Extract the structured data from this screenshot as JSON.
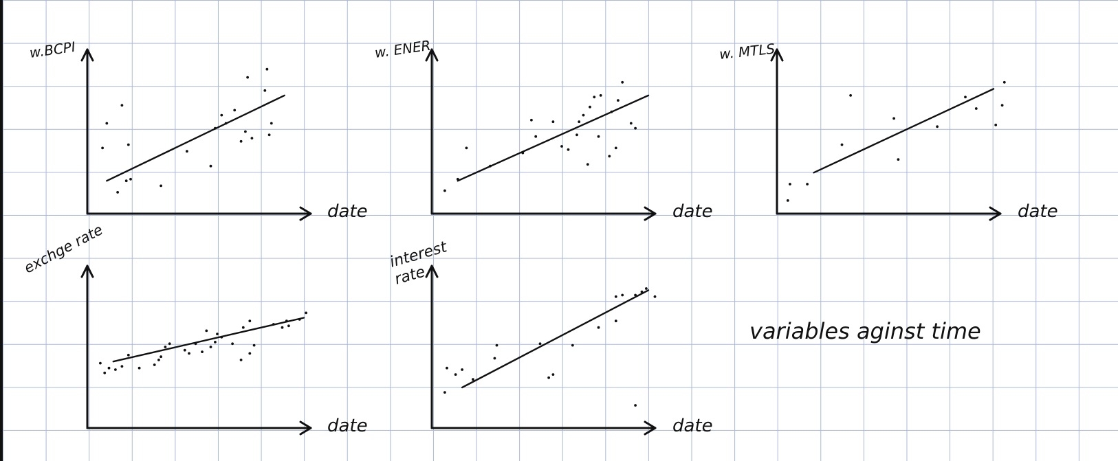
{
  "note": {
    "caption": "variables aginst time"
  },
  "chart_data": [
    {
      "type": "scatter",
      "ylabel": "w.BCPI",
      "xlabel": "date",
      "trend": [
        [
          0.09,
          0.2
        ],
        [
          0.91,
          0.72
        ]
      ],
      "points": [
        [
          0.07,
          0.4
        ],
        [
          0.09,
          0.55
        ],
        [
          0.16,
          0.66
        ],
        [
          0.19,
          0.42
        ],
        [
          0.14,
          0.13
        ],
        [
          0.18,
          0.2
        ],
        [
          0.2,
          0.21
        ],
        [
          0.34,
          0.17
        ],
        [
          0.46,
          0.38
        ],
        [
          0.57,
          0.29
        ],
        [
          0.59,
          0.52
        ],
        [
          0.62,
          0.6
        ],
        [
          0.64,
          0.55
        ],
        [
          0.68,
          0.63
        ],
        [
          0.71,
          0.44
        ],
        [
          0.73,
          0.5
        ],
        [
          0.76,
          0.46
        ],
        [
          0.84,
          0.48
        ],
        [
          0.85,
          0.55
        ],
        [
          0.82,
          0.75
        ],
        [
          0.74,
          0.83
        ],
        [
          0.83,
          0.88
        ]
      ]
    },
    {
      "type": "scatter",
      "ylabel": "w. ENER",
      "xlabel": "date",
      "trend": [
        [
          0.12,
          0.2
        ],
        [
          1.0,
          0.72
        ]
      ],
      "points": [
        [
          0.06,
          0.14
        ],
        [
          0.12,
          0.21
        ],
        [
          0.16,
          0.4
        ],
        [
          0.27,
          0.29
        ],
        [
          0.42,
          0.37
        ],
        [
          0.46,
          0.57
        ],
        [
          0.48,
          0.47
        ],
        [
          0.56,
          0.56
        ],
        [
          0.6,
          0.41
        ],
        [
          0.63,
          0.39
        ],
        [
          0.67,
          0.48
        ],
        [
          0.68,
          0.56
        ],
        [
          0.7,
          0.6
        ],
        [
          0.73,
          0.65
        ],
        [
          0.75,
          0.71
        ],
        [
          0.78,
          0.72
        ],
        [
          0.72,
          0.3
        ],
        [
          0.77,
          0.47
        ],
        [
          0.82,
          0.35
        ],
        [
          0.83,
          0.62
        ],
        [
          0.86,
          0.69
        ],
        [
          0.88,
          0.8
        ],
        [
          0.92,
          0.55
        ],
        [
          0.94,
          0.52
        ],
        [
          0.85,
          0.4
        ]
      ]
    },
    {
      "type": "scatter",
      "ylabel": "w. MTLS",
      "xlabel": "date",
      "trend": [
        [
          0.17,
          0.25
        ],
        [
          1.0,
          0.76
        ]
      ],
      "points": [
        [
          0.05,
          0.08
        ],
        [
          0.06,
          0.18
        ],
        [
          0.14,
          0.18
        ],
        [
          0.3,
          0.42
        ],
        [
          0.34,
          0.72
        ],
        [
          0.54,
          0.58
        ],
        [
          0.56,
          0.33
        ],
        [
          0.74,
          0.53
        ],
        [
          0.87,
          0.71
        ],
        [
          0.92,
          0.64
        ],
        [
          1.01,
          0.54
        ],
        [
          1.04,
          0.66
        ],
        [
          1.05,
          0.8
        ]
      ]
    },
    {
      "type": "scatter",
      "ylabel": "exchge rate",
      "xlabel": "date",
      "trend": [
        [
          0.12,
          0.41
        ],
        [
          1.0,
          0.68
        ]
      ],
      "points": [
        [
          0.06,
          0.4
        ],
        [
          0.08,
          0.34
        ],
        [
          0.1,
          0.37
        ],
        [
          0.13,
          0.36
        ],
        [
          0.16,
          0.38
        ],
        [
          0.19,
          0.45
        ],
        [
          0.24,
          0.37
        ],
        [
          0.31,
          0.39
        ],
        [
          0.33,
          0.42
        ],
        [
          0.34,
          0.44
        ],
        [
          0.36,
          0.5
        ],
        [
          0.38,
          0.52
        ],
        [
          0.45,
          0.48
        ],
        [
          0.47,
          0.46
        ],
        [
          0.5,
          0.52
        ],
        [
          0.53,
          0.47
        ],
        [
          0.57,
          0.5
        ],
        [
          0.59,
          0.53
        ],
        [
          0.55,
          0.6
        ],
        [
          0.6,
          0.58
        ],
        [
          0.62,
          0.56
        ],
        [
          0.67,
          0.52
        ],
        [
          0.71,
          0.42
        ],
        [
          0.75,
          0.46
        ],
        [
          0.77,
          0.51
        ],
        [
          0.72,
          0.62
        ],
        [
          0.75,
          0.66
        ],
        [
          0.86,
          0.64
        ],
        [
          0.9,
          0.62
        ],
        [
          0.93,
          0.63
        ],
        [
          0.98,
          0.67
        ],
        [
          0.92,
          0.66
        ],
        [
          1.01,
          0.71
        ]
      ]
    },
    {
      "type": "scatter",
      "ylabel": "interest rate",
      "xlabel": "date",
      "trend": [
        [
          0.14,
          0.25
        ],
        [
          1.0,
          0.85
        ]
      ],
      "points": [
        [
          0.06,
          0.22
        ],
        [
          0.07,
          0.37
        ],
        [
          0.11,
          0.33
        ],
        [
          0.14,
          0.36
        ],
        [
          0.19,
          0.3
        ],
        [
          0.29,
          0.43
        ],
        [
          0.3,
          0.51
        ],
        [
          0.5,
          0.52
        ],
        [
          0.54,
          0.31
        ],
        [
          0.56,
          0.33
        ],
        [
          0.65,
          0.51
        ],
        [
          0.77,
          0.62
        ],
        [
          0.85,
          0.66
        ],
        [
          0.85,
          0.81
        ],
        [
          0.88,
          0.82
        ],
        [
          0.94,
          0.82
        ],
        [
          0.97,
          0.84
        ],
        [
          0.99,
          0.86
        ],
        [
          1.03,
          0.81
        ],
        [
          0.94,
          0.14
        ]
      ]
    }
  ]
}
